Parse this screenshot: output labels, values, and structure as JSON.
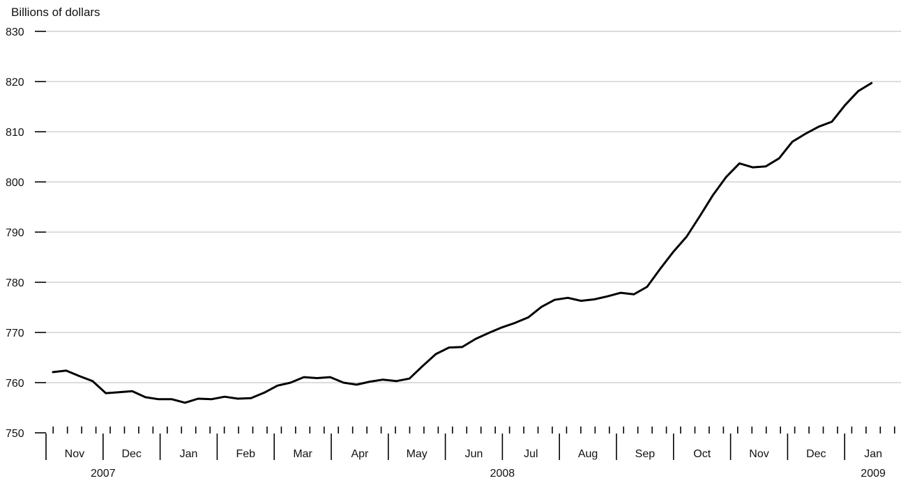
{
  "chart_data": {
    "type": "line",
    "title": "",
    "ylabel": "Billions of dollars",
    "xlabel": "",
    "ylim": [
      750,
      830
    ],
    "yticks": [
      750,
      760,
      770,
      780,
      790,
      800,
      810,
      820,
      830
    ],
    "grid": true,
    "month_labels": [
      "Nov",
      "Dec",
      "Jan",
      "Feb",
      "Mar",
      "Apr",
      "May",
      "Jun",
      "Jul",
      "Aug",
      "Sep",
      "Oct",
      "Nov",
      "Dec",
      "Jan"
    ],
    "year_labels": [
      "2007",
      "2008",
      "2009"
    ],
    "weekly_ticks_per_month": 4,
    "series": [
      {
        "values": [
          762.1,
          762.4,
          761.3,
          760.3,
          757.9,
          758.1,
          758.3,
          757.1,
          756.7,
          756.7,
          756.0,
          756.8,
          756.7,
          757.2,
          756.8,
          756.9,
          758.0,
          759.4,
          760.0,
          761.1,
          760.9,
          761.1,
          760.0,
          759.6,
          760.2,
          760.6,
          760.3,
          760.8,
          763.3,
          765.7,
          767.0,
          767.1,
          768.7,
          769.9,
          771.0,
          771.9,
          773.0,
          775.1,
          776.5,
          776.9,
          776.3,
          776.6,
          777.2,
          777.9,
          777.6,
          779.1,
          782.7,
          786.1,
          789.1,
          793.2,
          797.4,
          801.0,
          803.7,
          802.9,
          803.1,
          804.7,
          808.0,
          809.6,
          811.0,
          812.0,
          815.3,
          818.1,
          819.7
        ]
      }
    ]
  }
}
